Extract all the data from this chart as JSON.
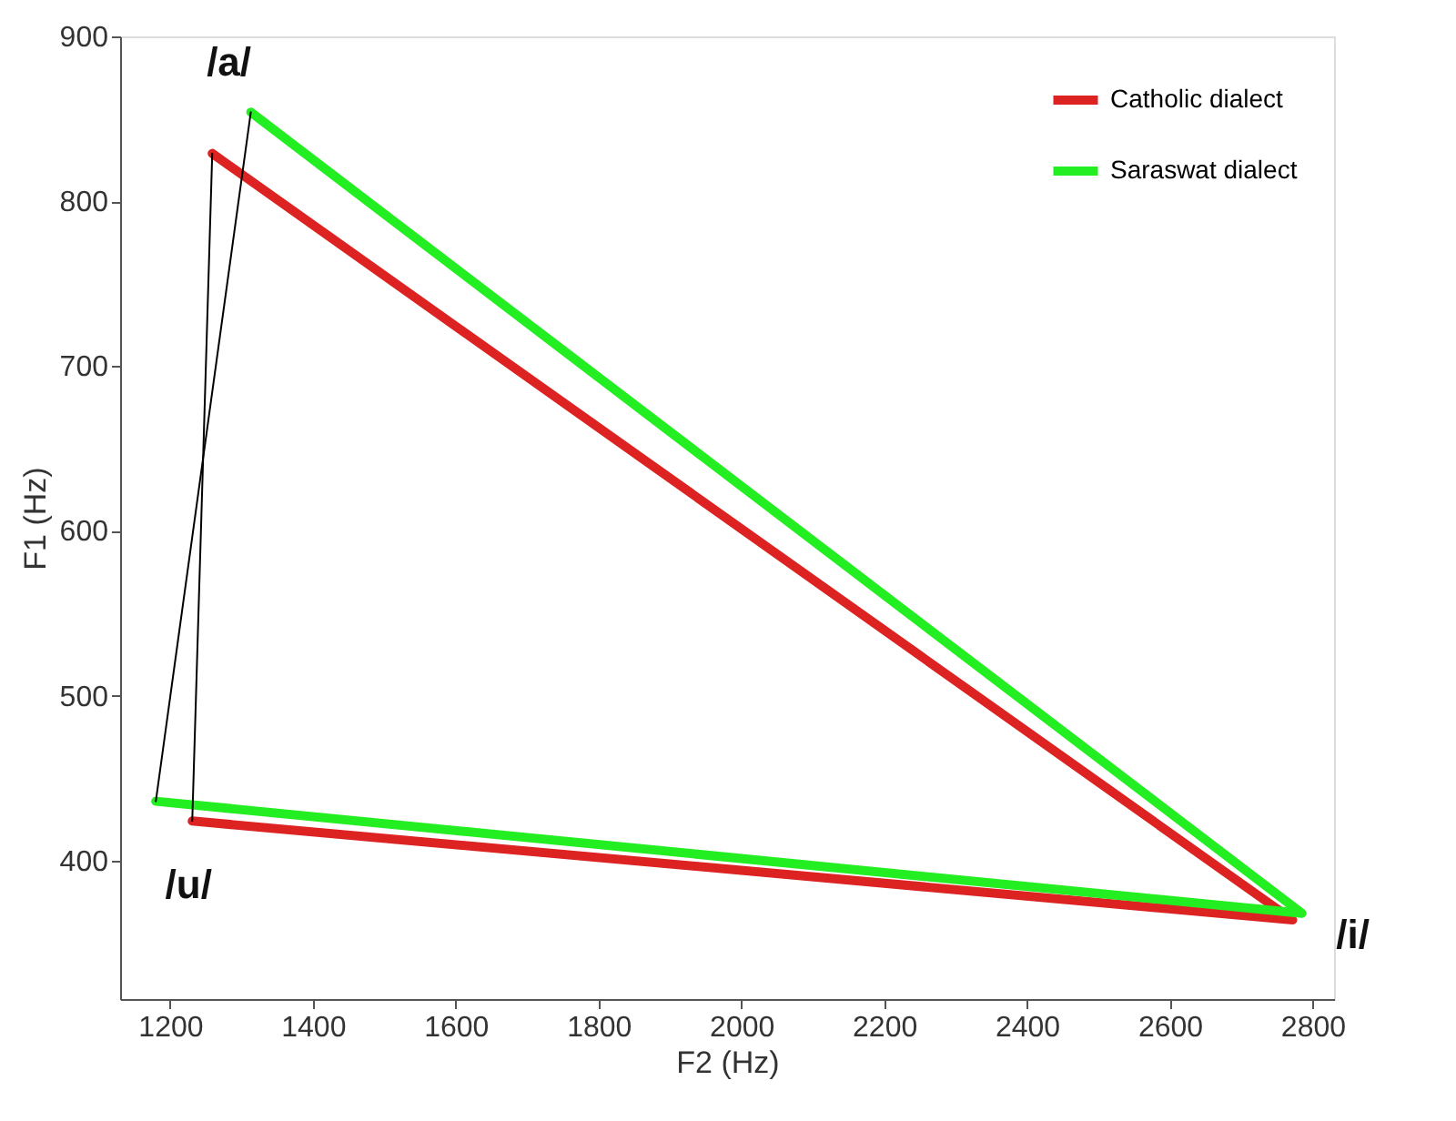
{
  "chart_data": {
    "type": "line",
    "xlabel": "F2 (Hz)",
    "ylabel": "F1 (Hz)",
    "xlim": [
      1130,
      2830
    ],
    "xticks": [
      1200,
      1400,
      1600,
      1800,
      2000,
      2200,
      2400,
      2600,
      2800
    ],
    "ylim": [
      316,
      900
    ],
    "yticks": [
      400,
      500,
      600,
      700,
      800,
      900
    ],
    "grid": false,
    "legend": "top right",
    "marker": "none",
    "line_style": "solid",
    "series": [
      {
        "name": "Catholic dialect",
        "color": "#dd2222",
        "x": [
          1259,
          2772,
          1231
        ],
        "values": [
          829,
          364,
          424
        ]
      },
      {
        "name": "Saraswat dialect",
        "color": "#22ee22",
        "x": [
          1313,
          2785,
          1180
        ],
        "values": [
          854,
          368,
          436
        ]
      },
      {
        "color": "#000000",
        "x": [
          1231,
          1259
        ],
        "values": [
          424,
          829
        ]
      },
      {
        "color": "#000000",
        "x": [
          1180,
          1313
        ],
        "values": [
          436,
          854
        ]
      }
    ],
    "annotations": [
      {
        "text": "/a/",
        "x": 1313,
        "y": 854
      },
      {
        "text": "/u/",
        "x": 1180,
        "y": 436
      },
      {
        "text": "/i/",
        "x": 2785,
        "y": 368
      }
    ]
  }
}
